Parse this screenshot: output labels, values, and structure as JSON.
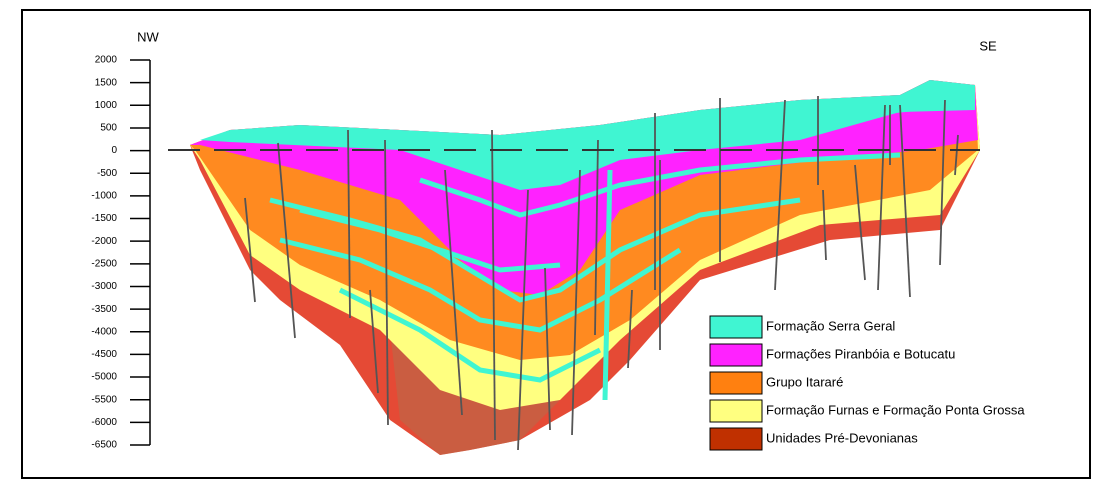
{
  "labels": {
    "left": "NW",
    "right": "SE"
  },
  "axis": {
    "ticks": [
      "2000",
      "1500",
      "1000",
      "500",
      "0",
      "-500",
      "-1000",
      "-1500",
      "-2000",
      "-2500",
      "-3000",
      "-3500",
      "-4000",
      "-4500",
      "-5000",
      "-5500",
      "-6000",
      "-6500"
    ]
  },
  "legend": [
    {
      "name": "Formação Serra Geral",
      "color": "#40f5d2"
    },
    {
      "name": "Formações Piranbóia e Botucatu",
      "color": "#ff22ff"
    },
    {
      "name": "Grupo Itararé",
      "color": "#ff8010"
    },
    {
      "name": "Formação Furnas  e Formação Ponta Grossa",
      "color": "#ffff80"
    },
    {
      "name": "Unidades Pré-Devonianas",
      "color": "#c03000"
    }
  ]
}
